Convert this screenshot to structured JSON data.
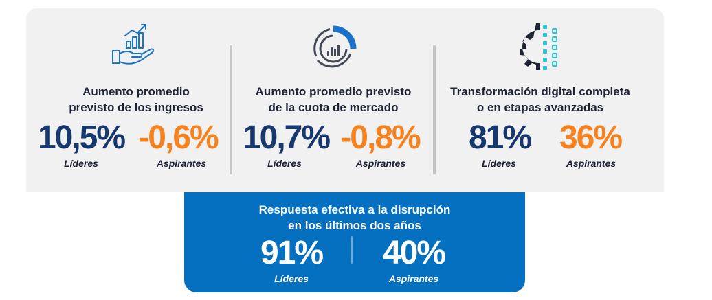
{
  "metrics": [
    {
      "title_line1": "Aumento promedio",
      "title_line2": "previsto de los ingresos",
      "leaders_value": "10,5%",
      "aspirants_value": "-0,6%",
      "leaders_label": "Líderes",
      "aspirants_label": "Aspirantes",
      "icon": "growth-hand-icon"
    },
    {
      "title_line1": "Aumento promedio previsto",
      "title_line2": "de la cuota de mercado",
      "leaders_value": "10,7%",
      "aspirants_value": "-0,8%",
      "leaders_label": "Líderes",
      "aspirants_label": "Aspirantes",
      "icon": "market-share-donut-icon"
    },
    {
      "title_line1": "Transformación digital completa",
      "title_line2": "o en etapas avanzadas",
      "leaders_value": "81%",
      "aspirants_value": "36%",
      "leaders_label": "Líderes",
      "aspirants_label": "Aspirantes",
      "icon": "digital-gear-icon"
    }
  ],
  "disruption": {
    "title_line1": "Respuesta efectiva a la disrupción",
    "title_line2": "en los últimos dos años",
    "leaders_value": "91%",
    "aspirants_value": "40%",
    "leaders_label": "Líderes",
    "aspirants_label": "Aspirantes"
  },
  "colors": {
    "navy": "#16386e",
    "orange": "#f5821f",
    "blue": "#0670c0",
    "panel": "#f1f1f1"
  }
}
